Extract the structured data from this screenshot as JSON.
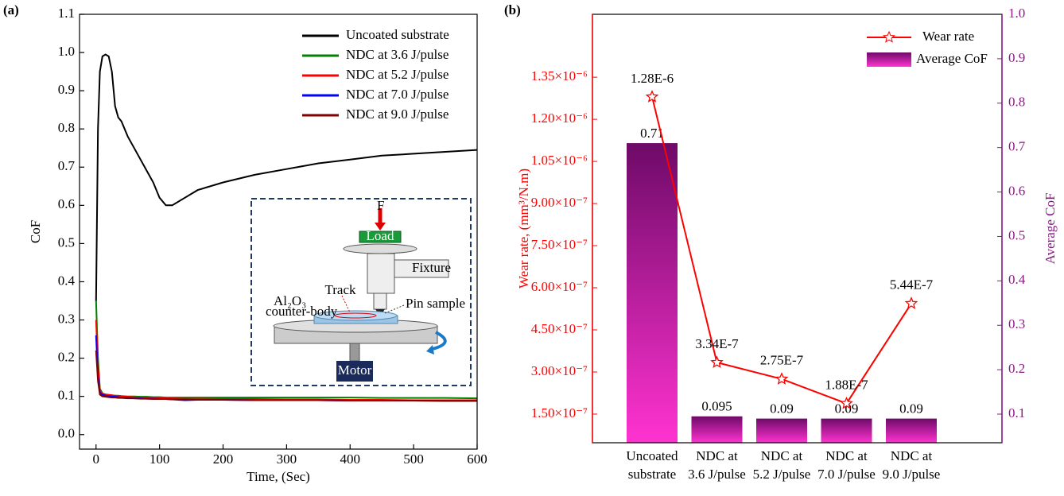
{
  "chart_data": [
    {
      "type": "line",
      "title": "(a)",
      "xlabel": "Time, (Sec)",
      "ylabel": "CoF",
      "x": [
        0,
        3,
        6,
        10,
        15,
        20,
        25,
        30,
        35,
        40,
        50,
        60,
        70,
        80,
        90,
        100,
        110,
        120,
        140,
        160,
        200,
        250,
        300,
        350,
        400,
        450,
        500,
        550,
        600
      ],
      "series": [
        {
          "name": "Uncoated substrate",
          "color": "#000000",
          "values": [
            0.35,
            0.8,
            0.95,
            0.99,
            0.995,
            0.99,
            0.95,
            0.86,
            0.83,
            0.82,
            0.78,
            0.75,
            0.72,
            0.69,
            0.66,
            0.62,
            0.6,
            0.6,
            0.62,
            0.64,
            0.66,
            0.68,
            0.695,
            0.71,
            0.72,
            0.73,
            0.735,
            0.74,
            0.745
          ]
        },
        {
          "name": "NDC at 3.6 J/pulse",
          "color": "#008000",
          "values": [
            0.35,
            0.2,
            0.12,
            0.108,
            0.105,
            0.104,
            0.103,
            0.102,
            0.102,
            0.101,
            0.1,
            0.1,
            0.099,
            0.099,
            0.098,
            0.098,
            0.097,
            0.097,
            0.097,
            0.097,
            0.097,
            0.097,
            0.097,
            0.097,
            0.097,
            0.096,
            0.096,
            0.096,
            0.095
          ]
        },
        {
          "name": "NDC at 5.2 J/pulse",
          "color": "#ff0000",
          "values": [
            0.3,
            0.18,
            0.115,
            0.107,
            0.105,
            0.104,
            0.103,
            0.102,
            0.101,
            0.1,
            0.099,
            0.098,
            0.097,
            0.097,
            0.096,
            0.096,
            0.095,
            0.095,
            0.094,
            0.094,
            0.093,
            0.093,
            0.092,
            0.092,
            0.091,
            0.091,
            0.09,
            0.09,
            0.09
          ]
        },
        {
          "name": "NDC at 7.0 J/pulse",
          "color": "#0000ff",
          "values": [
            0.26,
            0.15,
            0.11,
            0.104,
            0.102,
            0.101,
            0.1,
            0.099,
            0.098,
            0.097,
            0.096,
            0.095,
            0.095,
            0.094,
            0.094,
            0.093,
            0.093,
            0.092,
            0.09,
            0.091,
            0.091,
            0.09,
            0.09,
            0.09,
            0.089,
            0.089,
            0.089,
            0.088,
            0.088
          ]
        },
        {
          "name": "NDC at 9.0 J/pulse",
          "color": "#800000",
          "values": [
            0.22,
            0.14,
            0.105,
            0.1,
            0.099,
            0.098,
            0.097,
            0.097,
            0.096,
            0.096,
            0.095,
            0.095,
            0.094,
            0.094,
            0.093,
            0.093,
            0.093,
            0.092,
            0.092,
            0.091,
            0.091,
            0.09,
            0.09,
            0.09,
            0.089,
            0.089,
            0.089,
            0.088,
            0.088
          ]
        }
      ],
      "xlim": [
        -26,
        600
      ],
      "xticks": [
        0,
        100,
        200,
        300,
        400,
        500,
        600
      ],
      "ylim": [
        -0.038,
        1.1
      ],
      "yticks": [
        {
          "value": 0,
          "label": "0.0"
        },
        0.1,
        0.2,
        0.3,
        0.4,
        0.5,
        0.6,
        0.7,
        0.8,
        0.9,
        {
          "value": 1,
          "label": "1.0"
        },
        1.1
      ],
      "legend": "upper right",
      "annotations": [
        "F",
        "Load",
        "Fixture",
        "Track",
        "Pin sample",
        "Al₂O₃",
        "counter-body",
        "Motor"
      ]
    },
    {
      "type": "combo",
      "title": "(b)",
      "ylabel": "Wear rate, (mm³/N.m)",
      "y2label": "Average CoF",
      "categories": [
        [
          "Uncoated",
          "substrate"
        ],
        [
          "NDC at",
          "3.6 J/pulse"
        ],
        [
          "NDC at",
          "5.2 J/pulse"
        ],
        [
          "NDC at",
          "7.0 J/pulse"
        ],
        [
          "NDC at",
          "9.0 J/pulse"
        ]
      ],
      "series": [
        {
          "name": "Wear rate",
          "type": "line",
          "color": "#ff0000",
          "axis": "y",
          "values": [
            1.28e-06,
            3.34e-07,
            2.75e-07,
            1.88e-07,
            5.44e-07
          ],
          "value_labels": [
            "1.28E-6",
            "3.34E-7",
            "2.75E-7",
            "1.88E-7",
            "5.44E-7"
          ]
        },
        {
          "name": "Average CoF",
          "type": "bar",
          "color": "#cc00cc",
          "axis": "y2",
          "values": [
            0.71,
            0.095,
            0.09,
            0.09,
            0.09
          ]
        }
      ],
      "ylim": [
        4.8e-08,
        1.574e-06
      ],
      "yticks": [
        {
          "value": 1.5e-07,
          "label": "1.50×10⁻⁷"
        },
        {
          "value": 3e-07,
          "label": "3.00×10⁻⁷"
        },
        {
          "value": 4.5e-07,
          "label": "4.50×10⁻⁷"
        },
        {
          "value": 6e-07,
          "label": "6.00×10⁻⁷"
        },
        {
          "value": 7.5e-07,
          "label": "7.50×10⁻⁷"
        },
        {
          "value": 9e-07,
          "label": "9.00×10⁻⁷"
        },
        {
          "value": 1.05e-06,
          "label": "1.05×10⁻⁶"
        },
        {
          "value": 1.2e-06,
          "label": "1.20×10⁻⁶"
        },
        {
          "value": 1.35e-06,
          "label": "1.35×10⁻⁶"
        }
      ],
      "y2lim": [
        0.0356,
        1.0
      ],
      "y2ticks": [
        0.1,
        0.2,
        0.3,
        0.4,
        0.5,
        0.6,
        0.7,
        0.8,
        0.9,
        {
          "value": 1,
          "label": "1.0"
        }
      ],
      "legend": "upper right"
    }
  ]
}
